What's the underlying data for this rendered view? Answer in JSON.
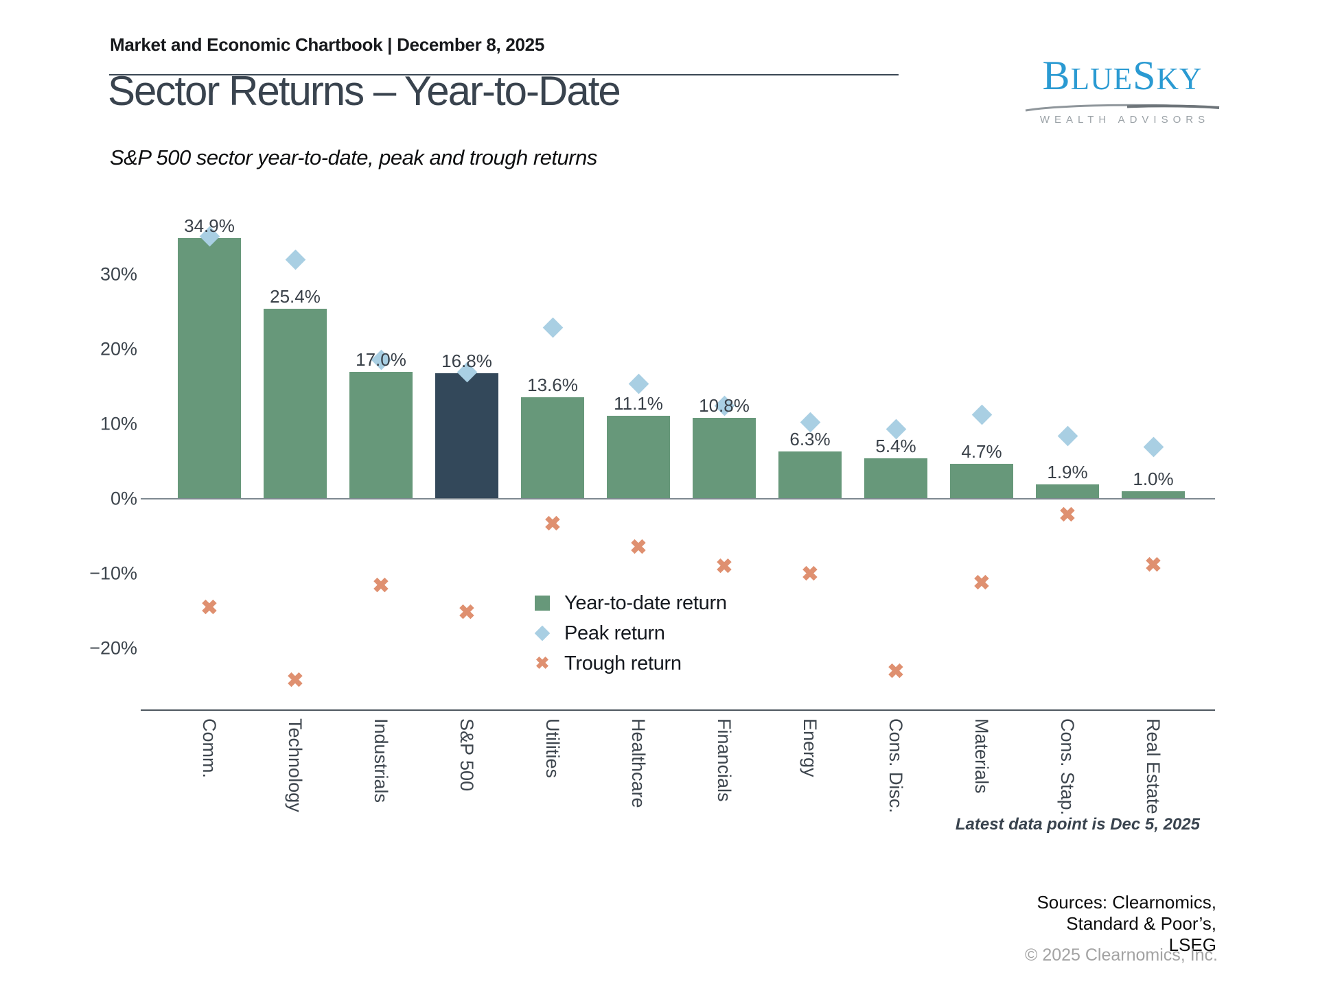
{
  "header": {
    "chartbook": "Market and Economic Chartbook | December 8, 2025"
  },
  "logo": {
    "p1": "B",
    "p2": "LUE",
    "p3": "S",
    "p4": "KY",
    "tagline": "WEALTH ADVISORS"
  },
  "title": "Sector Returns – Year-to-Date",
  "subtitle": "S&P 500 sector year-to-date, peak and trough returns",
  "chart_data": {
    "type": "bar",
    "categories": [
      "Comm.",
      "Technology",
      "Industrials",
      "S&P 500",
      "Utilities",
      "Healthcare",
      "Financials",
      "Energy",
      "Cons. Disc.",
      "Materials",
      "Cons. Stap.",
      "Real Estate"
    ],
    "series": [
      {
        "name": "Year-to-date return",
        "marker": "bar",
        "values": [
          34.9,
          25.4,
          17.0,
          16.8,
          13.6,
          11.1,
          10.8,
          6.3,
          5.4,
          4.7,
          1.9,
          1.0
        ]
      },
      {
        "name": "Peak return",
        "marker": "diamond",
        "values": [
          35.1,
          32.0,
          18.6,
          16.9,
          22.9,
          15.4,
          12.4,
          10.2,
          9.3,
          11.2,
          8.4,
          6.9
        ]
      },
      {
        "name": "Trough return",
        "marker": "x",
        "values": [
          -14.7,
          -24.4,
          -11.7,
          -15.3,
          -3.5,
          -6.6,
          -9.2,
          -10.2,
          -23.2,
          -11.4,
          -2.3,
          -9.0
        ]
      }
    ],
    "bar_label_format": "percent_one_decimal",
    "highlight_category": "S&P 500",
    "y_ticks": {
      "values": [
        30,
        20,
        10,
        0,
        -10,
        -20
      ],
      "labels": [
        "30%",
        "20%",
        "10%",
        "0%",
        "−10%",
        "−20%"
      ]
    },
    "ylim": [
      -27,
      38
    ],
    "grid": false,
    "legend_position": "center-inside"
  },
  "legend": {
    "items": [
      {
        "label": "Year-to-date return",
        "marker": "square"
      },
      {
        "label": "Peak return",
        "marker": "diamond"
      },
      {
        "label": "Trough return",
        "marker": "x"
      }
    ]
  },
  "colors": {
    "bar": "#67987a",
    "highlight_bar": "#33485a",
    "peak": "#a9cfe3",
    "trough": "#df9070",
    "axis": "#4d575f",
    "zero_line": "#7e8890",
    "tick_text": "#3e464e",
    "logo_blue": "#2a9ad2",
    "logo_gray": "#9aa1a6"
  },
  "footnote": "Latest data point is Dec 5, 2025",
  "sources_lines": [
    "Sources: Clearnomics,",
    "Standard & Poor’s,",
    "LSEG"
  ],
  "copyright": "© 2025 Clearnomics, Inc."
}
